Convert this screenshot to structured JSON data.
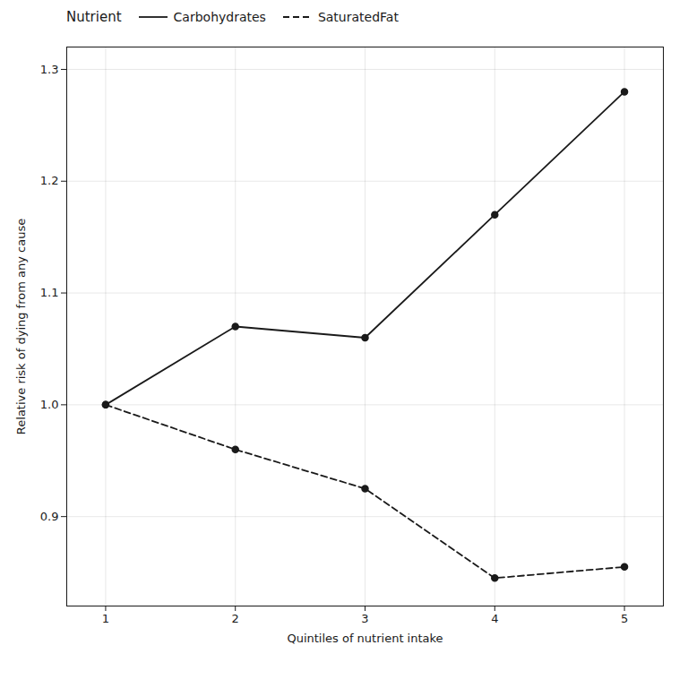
{
  "chart_data": {
    "type": "line",
    "x": [
      1,
      2,
      3,
      4,
      5
    ],
    "xlabel": "Quintiles of nutrient intake",
    "ylabel": "Relative risk of dying from any cause",
    "legend_title": "Nutrient",
    "series": [
      {
        "name": "Carbohydrates",
        "color": "#1a1a1a",
        "values": [
          1.0,
          1.07,
          1.06,
          1.17,
          1.28
        ],
        "line_style": "solid",
        "marker": "circle"
      },
      {
        "name": "SaturatedFat",
        "color": "#1a1a1a",
        "values": [
          1.0,
          0.96,
          0.925,
          0.845,
          0.855
        ],
        "line_style": "dashed",
        "marker": "circle"
      }
    ],
    "xlim": [
      0.7,
      5.3
    ],
    "xticks": [
      1,
      2,
      3,
      4,
      5
    ],
    "ylim": [
      0.82,
      1.32
    ],
    "yticks": [
      0.9,
      {
        "value": 1.0,
        "label": "1.0"
      },
      1.1,
      1.2,
      1.3
    ],
    "grid": true,
    "legend": "upper left"
  }
}
